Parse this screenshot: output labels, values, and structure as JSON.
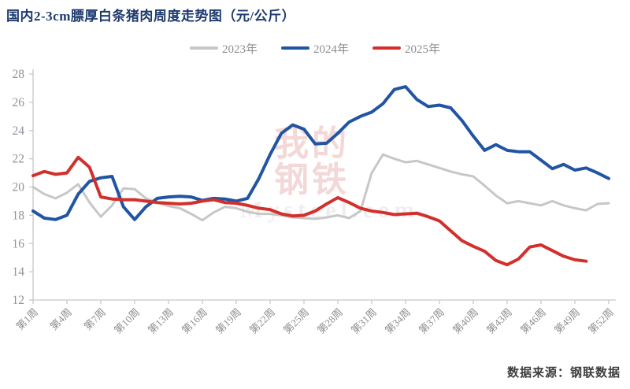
{
  "title": "国内2-3cm膘厚白条猪肉周度走势图（元/公斤）",
  "source_note": "数据来源：钢联数据",
  "watermark": {
    "line1": "我的",
    "line2": "钢铁",
    "latin": "Mysteel.com"
  },
  "axis": {
    "y_tick_labels": [
      "12",
      "14",
      "16",
      "18",
      "20",
      "22",
      "24",
      "26",
      "28"
    ],
    "x_tick_labels": [
      "第1周",
      "第4周",
      "第7周",
      "第10周",
      "第13周",
      "第16周",
      "第19周",
      "第22周",
      "第25周",
      "第28周",
      "第31周",
      "第34周",
      "第37周",
      "第40周",
      "第43周",
      "第46周",
      "第49周",
      "第52周"
    ]
  },
  "colors": {
    "title": "#1d3a6e",
    "axis_line": "#c6c6c6",
    "axis_text": "#8e939b",
    "legend_text": "#8f8f8f"
  },
  "chart_data": {
    "type": "line",
    "title": "国内2-3cm膘厚白条猪肉周度走势图（元/公斤）",
    "xlabel": "",
    "ylabel": "元/公斤",
    "ylim": [
      12,
      28
    ],
    "yticks": [
      12,
      14,
      16,
      18,
      20,
      22,
      24,
      26,
      28
    ],
    "x_weeks": 52,
    "x_tick_every": 3,
    "grid": false,
    "legend_position": "top-center",
    "series": [
      {
        "name": "2023年",
        "color": "#c7c7c7",
        "values": [
          20.0,
          19.5,
          19.2,
          19.6,
          20.2,
          18.9,
          17.9,
          18.7,
          19.9,
          19.85,
          19.2,
          18.9,
          18.65,
          18.5,
          18.1,
          17.65,
          18.2,
          18.6,
          18.5,
          18.25,
          18.1,
          18.1,
          18.0,
          17.85,
          17.8,
          17.75,
          17.85,
          18.0,
          17.8,
          18.3,
          21.0,
          22.3,
          22.0,
          21.75,
          21.85,
          21.6,
          21.35,
          21.1,
          20.9,
          20.75,
          20.1,
          19.4,
          18.85,
          19.0,
          18.85,
          18.7,
          19.0,
          18.7,
          18.5,
          18.35,
          18.8,
          18.85
        ]
      },
      {
        "name": "2024年",
        "color": "#2155a3",
        "values": [
          18.3,
          17.8,
          17.7,
          18.0,
          19.5,
          20.4,
          20.65,
          20.75,
          18.6,
          17.7,
          18.6,
          19.2,
          19.3,
          19.35,
          19.3,
          19.05,
          19.2,
          19.15,
          19.0,
          19.2,
          20.6,
          22.3,
          23.8,
          24.4,
          24.1,
          23.05,
          23.1,
          23.8,
          24.6,
          25.0,
          25.3,
          25.9,
          26.9,
          27.1,
          26.2,
          25.7,
          25.8,
          25.6,
          24.7,
          23.6,
          22.6,
          23.0,
          22.6,
          22.5,
          22.5,
          21.9,
          21.3,
          21.6,
          21.2,
          21.35,
          21.0,
          20.6
        ]
      },
      {
        "name": "2025年",
        "color": "#d2302c",
        "values": [
          20.8,
          21.1,
          20.9,
          21.0,
          22.1,
          21.4,
          19.3,
          19.15,
          19.1,
          19.1,
          19.0,
          18.9,
          18.85,
          18.8,
          18.85,
          19.0,
          19.1,
          18.9,
          18.85,
          18.7,
          18.5,
          18.4,
          18.1,
          17.95,
          18.0,
          18.3,
          18.8,
          19.25,
          18.9,
          18.5,
          18.3,
          18.2,
          18.05,
          18.1,
          18.15,
          17.9,
          17.6,
          16.9,
          16.2,
          15.8,
          15.45,
          14.8,
          14.5,
          14.9,
          15.75,
          15.9,
          15.5,
          15.1,
          14.85,
          14.75
        ]
      }
    ]
  }
}
